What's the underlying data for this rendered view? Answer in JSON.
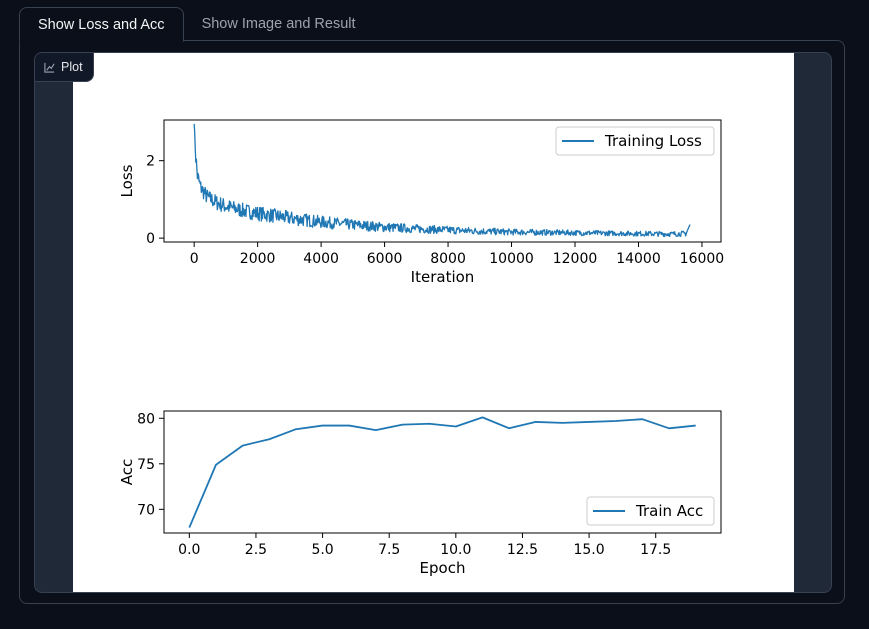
{
  "tabs": [
    {
      "label": "Show Loss and Acc",
      "active": true
    },
    {
      "label": "Show Image and Result",
      "active": false
    }
  ],
  "plot_block": {
    "label": "Plot",
    "icon": "chart-icon"
  },
  "colors": {
    "background": "#0b0f19",
    "panel": "#1f2937",
    "border": "#374151",
    "line": "#1f77b4"
  },
  "chart_data": [
    {
      "type": "line",
      "xlabel": "Iteration",
      "ylabel": "Loss",
      "xlim": [
        -950,
        16600
      ],
      "ylim": [
        -0.1,
        3.05
      ],
      "xticks": [
        0,
        2000,
        4000,
        6000,
        8000,
        10000,
        12000,
        14000,
        16000
      ],
      "yticks": [
        0,
        2
      ],
      "legend": {
        "position": "upper-right",
        "entries": [
          "Training Loss"
        ]
      },
      "series": [
        {
          "name": "Training Loss",
          "x": [
            0,
            50,
            100,
            200,
            400,
            700,
            1000,
            1500,
            2000,
            3000,
            4000,
            5000,
            6000,
            7000,
            8000,
            9000,
            10000,
            11000,
            12000,
            13000,
            14000,
            15000,
            15500,
            15625
          ],
          "y": [
            2.95,
            2.1,
            1.6,
            1.3,
            1.05,
            0.9,
            0.8,
            0.7,
            0.62,
            0.5,
            0.4,
            0.33,
            0.27,
            0.23,
            0.2,
            0.17,
            0.15,
            0.14,
            0.13,
            0.12,
            0.11,
            0.1,
            0.11,
            0.35
          ],
          "noise": [
            0,
            0.5,
            0.45,
            0.42,
            0.4,
            0.4,
            0.4,
            0.38,
            0.38,
            0.36,
            0.32,
            0.28,
            0.25,
            0.22,
            0.2,
            0.18,
            0.16,
            0.15,
            0.14,
            0.13,
            0.13,
            0.13,
            0.14,
            0
          ]
        }
      ]
    },
    {
      "type": "line",
      "xlabel": "Epoch",
      "ylabel": "Acc",
      "xlim": [
        -0.95,
        19.95
      ],
      "ylim": [
        67.4,
        80.8
      ],
      "xticks": [
        0,
        2.5,
        5,
        7.5,
        10,
        12.5,
        15,
        17.5
      ],
      "xticklabels": [
        "0.0",
        "2.5",
        "5.0",
        "7.5",
        "10.0",
        "12.5",
        "15.0",
        "17.5"
      ],
      "yticks": [
        70,
        75,
        80
      ],
      "legend": {
        "position": "lower-right",
        "entries": [
          "Train Acc"
        ]
      },
      "series": [
        {
          "name": "Train Acc",
          "x": [
            0,
            1,
            2,
            3,
            4,
            5,
            6,
            7,
            8,
            9,
            10,
            11,
            12,
            13,
            14,
            15,
            16,
            17,
            18,
            19
          ],
          "y": [
            68.0,
            74.9,
            77.0,
            77.7,
            78.8,
            79.2,
            79.2,
            78.7,
            79.3,
            79.4,
            79.1,
            80.1,
            78.9,
            79.6,
            79.5,
            79.6,
            79.7,
            79.9,
            78.9,
            79.2
          ]
        }
      ]
    }
  ]
}
